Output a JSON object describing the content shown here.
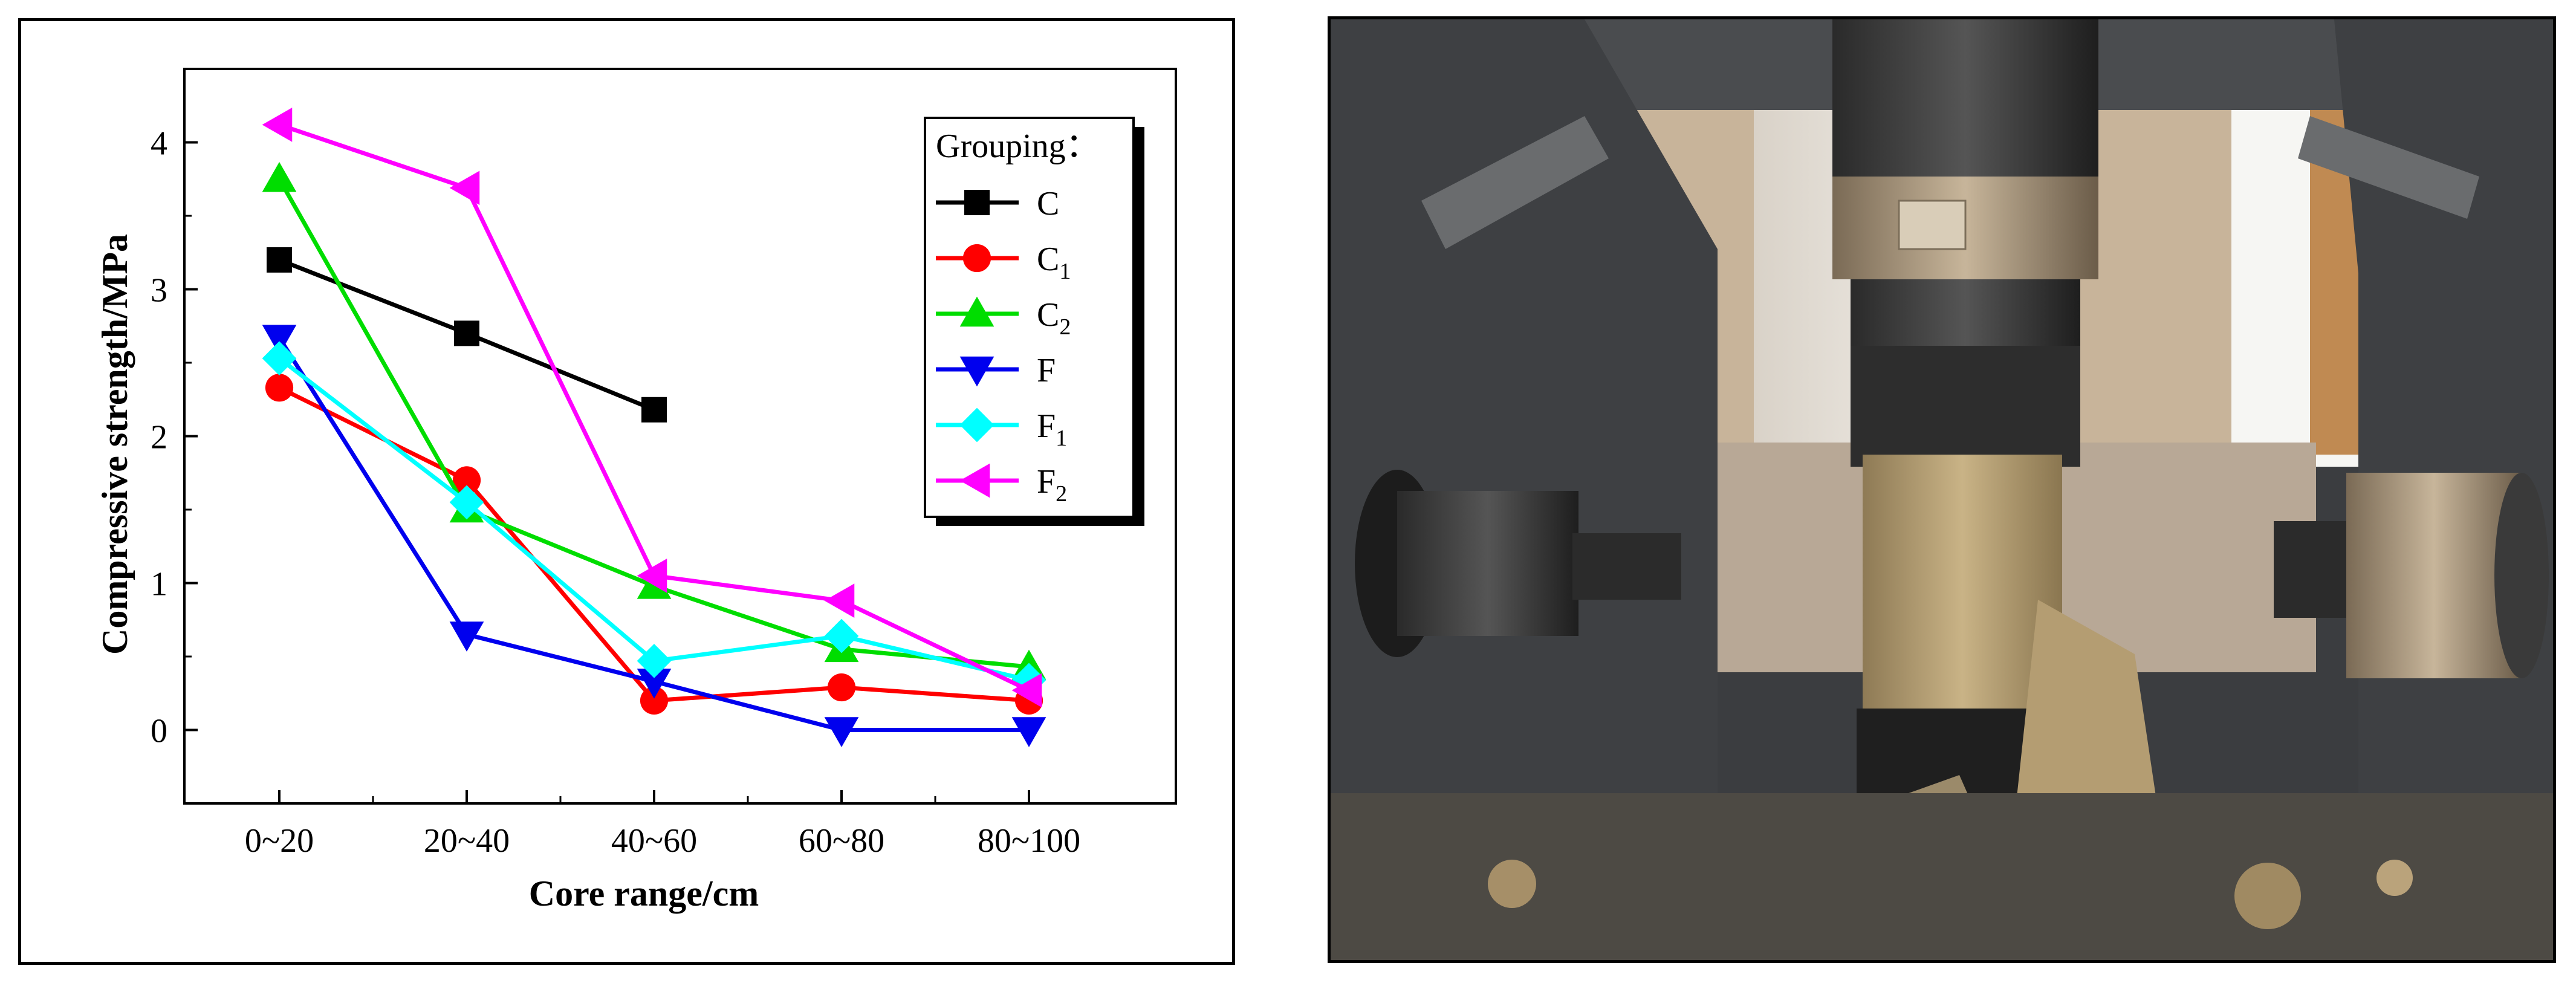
{
  "chart_data": {
    "type": "line",
    "title": "",
    "xlabel": "Core range/cm",
    "ylabel": "Compressive strength/MPa",
    "categories": [
      "0~20",
      "20~40",
      "40~60",
      "60~80",
      "80~100"
    ],
    "ylim": [
      -0.5,
      4.5
    ],
    "yticks": [
      0,
      1,
      2,
      3,
      4
    ],
    "grid": false,
    "legend": {
      "title": "Grouping：",
      "placement": "top-right"
    },
    "series": [
      {
        "name": "C",
        "base": "C",
        "sub": "",
        "color": "#000000",
        "marker": "square",
        "values": [
          3.2,
          2.7,
          2.18,
          null,
          null
        ]
      },
      {
        "name": "C1",
        "base": "C",
        "sub": "1",
        "color": "#ff0000",
        "marker": "circle",
        "values": [
          2.33,
          1.7,
          0.2,
          0.29,
          0.2
        ]
      },
      {
        "name": "C2",
        "base": "C",
        "sub": "2",
        "color": "#00dd00",
        "marker": "triangle-up",
        "values": [
          3.75,
          1.5,
          0.98,
          0.55,
          0.43
        ]
      },
      {
        "name": "F",
        "base": "F",
        "sub": "",
        "color": "#0000ee",
        "marker": "triangle-down",
        "values": [
          2.67,
          0.65,
          0.33,
          0.0,
          0.0
        ]
      },
      {
        "name": "F1",
        "base": "F",
        "sub": "1",
        "color": "#00ffff",
        "marker": "diamond",
        "values": [
          2.53,
          1.55,
          0.47,
          0.64,
          0.34
        ]
      },
      {
        "name": "F2",
        "base": "F",
        "sub": "2",
        "color": "#ff00ff",
        "marker": "triangle-left",
        "values": [
          4.12,
          3.69,
          1.05,
          0.88,
          0.27
        ]
      }
    ]
  }
}
